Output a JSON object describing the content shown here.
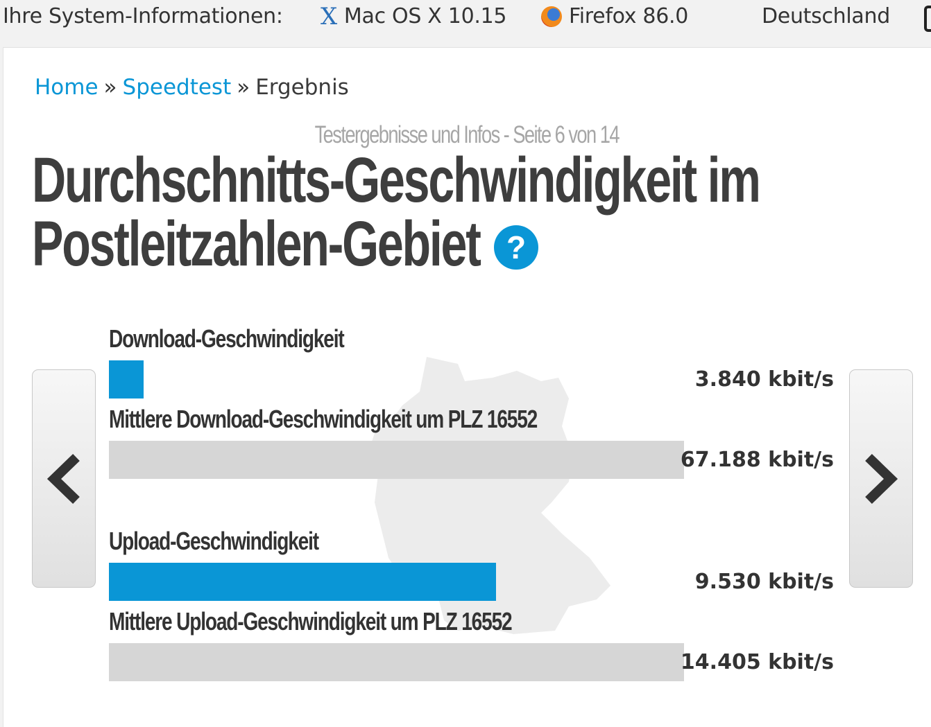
{
  "system_bar": {
    "label": "Ihre System-Informationen:",
    "os": {
      "icon": "mac-os-x-icon",
      "text": "Mac OS X 10.15"
    },
    "browser": {
      "icon": "firefox-icon",
      "text": "Firefox 86.0"
    },
    "country": {
      "icon": "germany-flag-icon",
      "text": "Deutschland",
      "flag_colors": [
        "#000000",
        "#dd0000",
        "#ffce00"
      ]
    }
  },
  "breadcrumb": {
    "home": "Home",
    "speedtest": "Speedtest",
    "separator": "»",
    "current": "Ergebnis"
  },
  "page_info": "Testergebnisse und Infos - Seite 6 von 14",
  "title_line1": "Durchschnitts-Geschwindigkeit im",
  "title_line2": "Postleitzahlen-Gebiet",
  "help_icon": "?",
  "colors": {
    "accent": "#0a96d6",
    "bar_gray": "#d6d6d6",
    "text": "#3a3a3a"
  },
  "nav": {
    "prev_icon": "chevron-left-icon",
    "next_icon": "chevron-right-icon"
  },
  "bars": {
    "scale_max_kbit": 67188,
    "download": {
      "label": "Download-Geschwindigkeit",
      "value": 3840,
      "value_text": "3.840 kbit/s"
    },
    "download_avg": {
      "label": "Mittlere Download-Geschwindigkeit um PLZ 16552",
      "value": 67188,
      "value_text": "67.188 kbit/s"
    },
    "upload": {
      "label": "Upload-Geschwindigkeit",
      "value": 9530,
      "value_text": "9.530 kbit/s",
      "fill_fraction": 0.673
    },
    "upload_avg": {
      "label": "Mittlere Upload-Geschwindigkeit um PLZ 16552",
      "value": 14405,
      "value_text": "14.405 kbit/s"
    }
  }
}
